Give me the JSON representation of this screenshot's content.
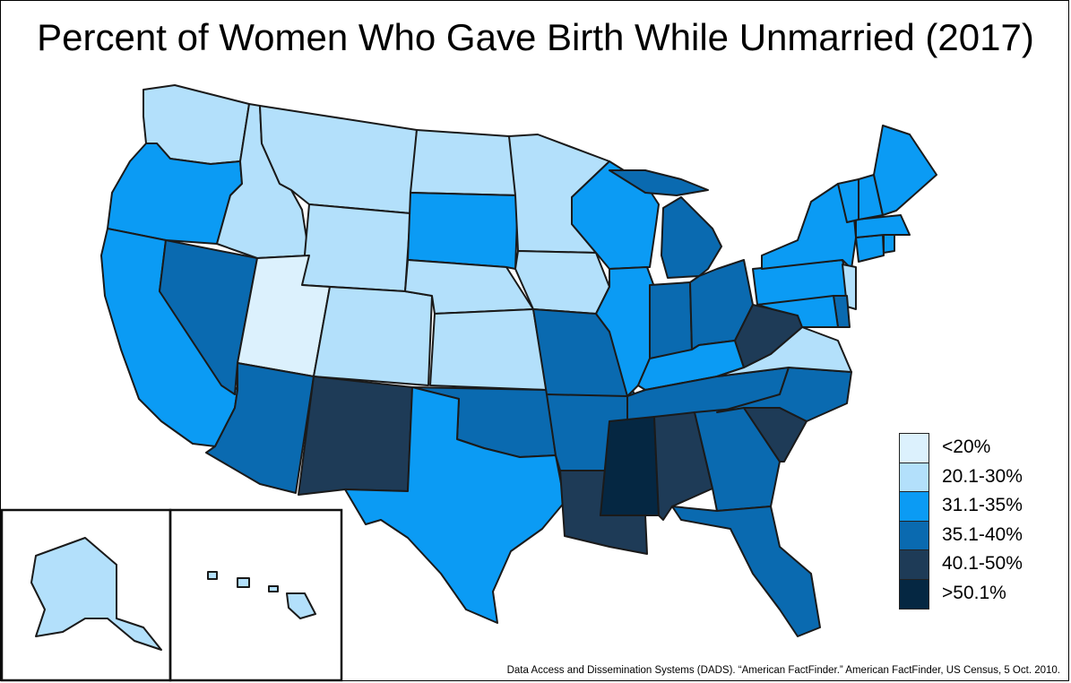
{
  "title": "Percent of Women Who Gave Birth While Unmarried (2017)",
  "source": "Data Access and Dissemination Systems (DADS). “American FactFinder.” American FactFinder, US Census, 5 Oct. 2010.",
  "legend": [
    {
      "label": "<20%",
      "color": "#dcf1fd"
    },
    {
      "label": "20.1-30%",
      "color": "#b3e0fb"
    },
    {
      "label": "31.1-35%",
      "color": "#0b9bf4"
    },
    {
      "label": "35.1-40%",
      "color": "#0a6ab0"
    },
    {
      "label": "40.1-50%",
      "color": "#1e3b57"
    },
    {
      "label": ">50.1%",
      "color": "#052742"
    }
  ],
  "map_data": {
    "states": [
      {
        "name": "Washington",
        "class": "20.1-30%"
      },
      {
        "name": "Oregon",
        "class": "31.1-35%"
      },
      {
        "name": "California",
        "class": "31.1-35%"
      },
      {
        "name": "Nevada",
        "class": "35.1-40%"
      },
      {
        "name": "Idaho",
        "class": "20.1-30%"
      },
      {
        "name": "Montana",
        "class": "20.1-30%"
      },
      {
        "name": "Wyoming",
        "class": "20.1-30%"
      },
      {
        "name": "Utah",
        "class": "<20%"
      },
      {
        "name": "Colorado",
        "class": "20.1-30%"
      },
      {
        "name": "Arizona",
        "class": "35.1-40%"
      },
      {
        "name": "New Mexico",
        "class": "40.1-50%"
      },
      {
        "name": "North Dakota",
        "class": "20.1-30%"
      },
      {
        "name": "South Dakota",
        "class": "31.1-35%"
      },
      {
        "name": "Nebraska",
        "class": "20.1-30%"
      },
      {
        "name": "Kansas",
        "class": "20.1-30%"
      },
      {
        "name": "Oklahoma",
        "class": "35.1-40%"
      },
      {
        "name": "Texas",
        "class": "31.1-35%"
      },
      {
        "name": "Minnesota",
        "class": "20.1-30%"
      },
      {
        "name": "Iowa",
        "class": "20.1-30%"
      },
      {
        "name": "Missouri",
        "class": "35.1-40%"
      },
      {
        "name": "Arkansas",
        "class": "35.1-40%"
      },
      {
        "name": "Louisiana",
        "class": "40.1-50%"
      },
      {
        "name": "Wisconsin",
        "class": "31.1-35%"
      },
      {
        "name": "Illinois",
        "class": "31.1-35%"
      },
      {
        "name": "Michigan",
        "class": "35.1-40%"
      },
      {
        "name": "Indiana",
        "class": "35.1-40%"
      },
      {
        "name": "Ohio",
        "class": "35.1-40%"
      },
      {
        "name": "Kentucky",
        "class": "31.1-35%"
      },
      {
        "name": "Tennessee",
        "class": "35.1-40%"
      },
      {
        "name": "Mississippi",
        "class": ">50.1%"
      },
      {
        "name": "Alabama",
        "class": "40.1-50%"
      },
      {
        "name": "Georgia",
        "class": "35.1-40%"
      },
      {
        "name": "Florida",
        "class": "35.1-40%"
      },
      {
        "name": "South Carolina",
        "class": "40.1-50%"
      },
      {
        "name": "North Carolina",
        "class": "35.1-40%"
      },
      {
        "name": "Virginia",
        "class": "20.1-30%"
      },
      {
        "name": "West Virginia",
        "class": "40.1-50%"
      },
      {
        "name": "Pennsylvania",
        "class": "31.1-35%"
      },
      {
        "name": "New York",
        "class": "31.1-35%"
      },
      {
        "name": "New Jersey",
        "class": "20.1-30%"
      },
      {
        "name": "Delaware",
        "class": "35.1-40%"
      },
      {
        "name": "Maryland",
        "class": "31.1-35%"
      },
      {
        "name": "Connecticut",
        "class": "31.1-35%"
      },
      {
        "name": "Rhode Island",
        "class": "31.1-35%"
      },
      {
        "name": "Massachusetts",
        "class": "31.1-35%"
      },
      {
        "name": "Vermont",
        "class": "31.1-35%"
      },
      {
        "name": "New Hampshire",
        "class": "31.1-35%"
      },
      {
        "name": "Maine",
        "class": "31.1-35%"
      },
      {
        "name": "Alaska",
        "class": "20.1-30%"
      },
      {
        "name": "Hawaii",
        "class": "20.1-30%"
      }
    ]
  }
}
